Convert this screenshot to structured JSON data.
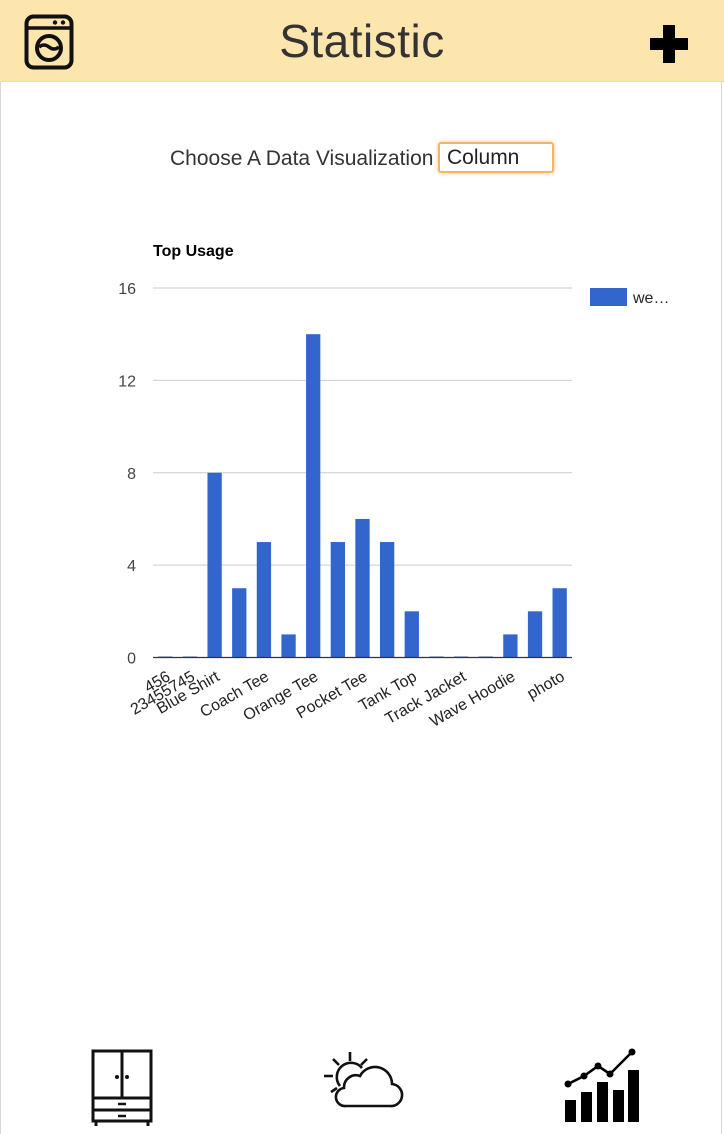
{
  "header": {
    "title": "Statistic",
    "left_icon": "washing-machine-icon",
    "right_icon": "plus-icon"
  },
  "chooser": {
    "label": "Choose A Data Visualization",
    "selected": "Column"
  },
  "chart_data": {
    "type": "bar",
    "title": "Top Usage",
    "categories": [
      "456",
      "23455745",
      "Blue Shirt",
      "",
      "Coach Tee",
      "",
      "Orange Tee",
      "",
      "Pocket Tee",
      "",
      "Tank Top",
      "",
      "Track Jacket",
      "",
      "Wave Hoodie",
      "",
      "photo"
    ],
    "series": [
      {
        "name": "we…",
        "values": [
          0,
          0,
          8,
          3,
          5,
          1,
          14,
          5,
          6,
          5,
          2,
          0,
          0,
          0,
          1,
          2,
          3
        ]
      }
    ],
    "ylim": [
      0,
      16
    ],
    "yticks": [
      "0",
      "4",
      "8",
      "12",
      "16"
    ],
    "grid": true,
    "legend": "top-right",
    "bar_color": "#3366cc"
  },
  "bottom_nav": [
    {
      "icon": "wardrobe-icon"
    },
    {
      "icon": "weather-icon"
    },
    {
      "icon": "stats-chart-icon"
    }
  ]
}
